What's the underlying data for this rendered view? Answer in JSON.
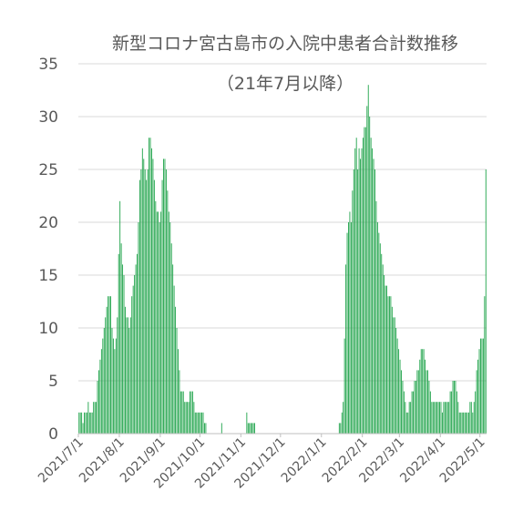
{
  "chart_data": {
    "type": "bar",
    "title": "新型コロナ宮古島市の入院中患者合計数推移",
    "subtitle": "（21年7月以降）",
    "xlabel": "",
    "ylabel": "",
    "ylim": [
      0,
      35
    ],
    "yticks": [
      0,
      5,
      10,
      15,
      20,
      25,
      30,
      35
    ],
    "x_start": "2021-07-01",
    "x_end": "2022-05-03",
    "xtick_labels": [
      "2021/7/1",
      "2021/8/1",
      "2021/9/1",
      "2021/10/1",
      "2021/11/1",
      "2021/12/1",
      "2022/1/1",
      "2022/2/1",
      "2022/3/1",
      "2022/4/1",
      "2022/5/1"
    ],
    "grid": true,
    "legend": "none",
    "bar_color": "#1fa34a",
    "series": [
      {
        "values": [
          2,
          2,
          2,
          1,
          2,
          2,
          2,
          3,
          2,
          2,
          2,
          3,
          3,
          3,
          5,
          6,
          7,
          8,
          9,
          10,
          11,
          12,
          13,
          13,
          13,
          10,
          9,
          8,
          9,
          11,
          17,
          22,
          18,
          16,
          15,
          12,
          11,
          11,
          10,
          11,
          13,
          14,
          15,
          16,
          17,
          20,
          24,
          25,
          27,
          26,
          25,
          24,
          25,
          28,
          28,
          27,
          26,
          24,
          22,
          21,
          21,
          20,
          21,
          24,
          26,
          26,
          25,
          23,
          21,
          20,
          18,
          16,
          14,
          12,
          10,
          8,
          6,
          4,
          4,
          4,
          3,
          3,
          3,
          3,
          4,
          4,
          4,
          3,
          2,
          2,
          2,
          2,
          2,
          2,
          2,
          1,
          1,
          0,
          0,
          0,
          0,
          0,
          0,
          0,
          0,
          0,
          0,
          0,
          1,
          0,
          0,
          0,
          0,
          0,
          0,
          0,
          0,
          0,
          0,
          0,
          0,
          0,
          0,
          0,
          0,
          0,
          0,
          2,
          1,
          1,
          1,
          1,
          1,
          1,
          0,
          0,
          0,
          0,
          0,
          0,
          0,
          0,
          0,
          0,
          0,
          0,
          0,
          0,
          0,
          0,
          0,
          0,
          0,
          0,
          0,
          0,
          0,
          0,
          0,
          0,
          0,
          0,
          0,
          0,
          0,
          0,
          0,
          0,
          0,
          0,
          0,
          0,
          0,
          0,
          0,
          0,
          0,
          0,
          0,
          0,
          0,
          0,
          0,
          0,
          0,
          0,
          0,
          0,
          0,
          0,
          0,
          0,
          0,
          0,
          0,
          0,
          0,
          1,
          1,
          2,
          3,
          9,
          16,
          19,
          20,
          21,
          20,
          23,
          25,
          27,
          28,
          25,
          27,
          26,
          27,
          28,
          29,
          29,
          31,
          33,
          30,
          28,
          27,
          26,
          25,
          22,
          20,
          19,
          18,
          17,
          16,
          15,
          14,
          14,
          13,
          13,
          13,
          12,
          11,
          11,
          10,
          9,
          8,
          7,
          6,
          5,
          4,
          3,
          2,
          2,
          3,
          3,
          4,
          4,
          5,
          5,
          6,
          6,
          7,
          8,
          8,
          8,
          7,
          6,
          6,
          5,
          4,
          3,
          3,
          3,
          3,
          3,
          3,
          3,
          3,
          2,
          3,
          3,
          3,
          3,
          3,
          4,
          4,
          5,
          5,
          5,
          4,
          3,
          2,
          2,
          2,
          2,
          2,
          2,
          2,
          2,
          3,
          3,
          2,
          3,
          4,
          6,
          7,
          8,
          9,
          9,
          9,
          13,
          25
        ]
      }
    ]
  }
}
